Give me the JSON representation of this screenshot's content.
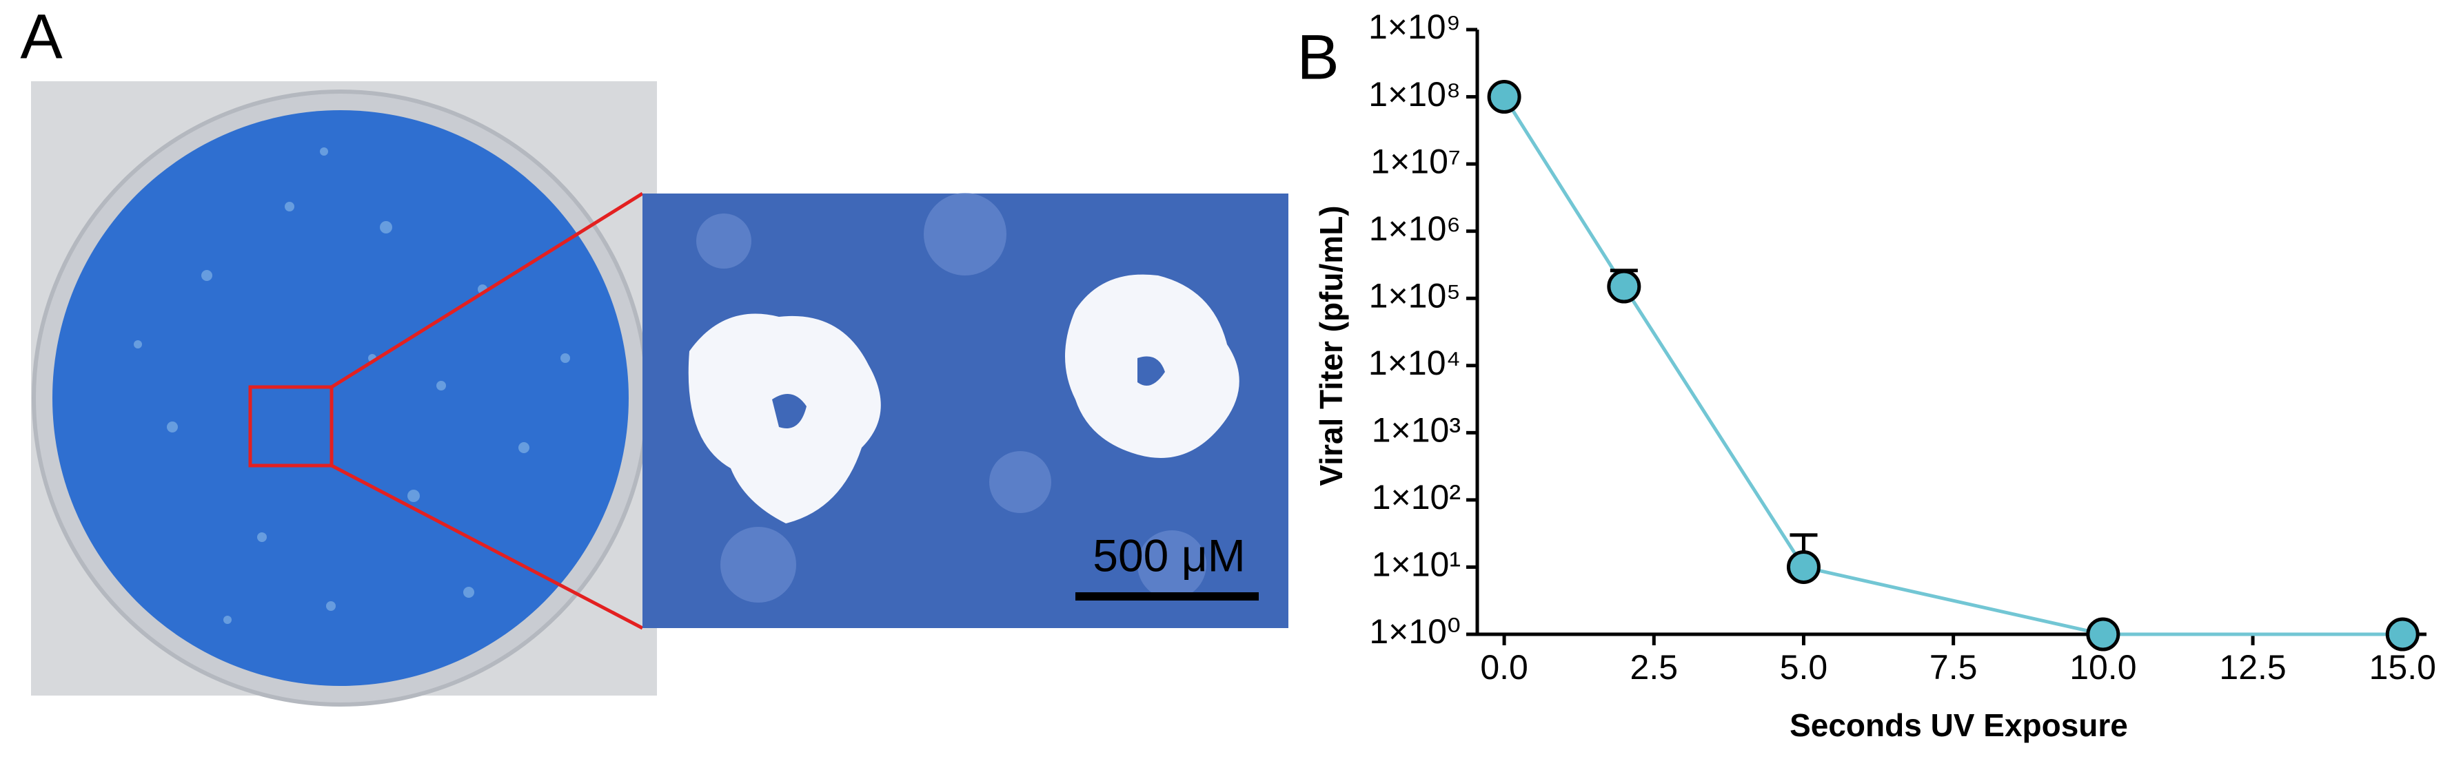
{
  "panel_a": {
    "label": "A",
    "scale_bar": "500 μM"
  },
  "chart_data": {
    "type": "line",
    "panel_label": "B",
    "x_label": "Seconds UV Exposure",
    "y_label": "Viral Titer (pfu/mL)",
    "x": [
      0,
      2,
      5,
      10,
      15
    ],
    "values": [
      100000000,
      150000,
      10,
      1,
      1
    ],
    "errors": [
      null,
      110000,
      20,
      null,
      null
    ],
    "color": "#5bbccc",
    "line_color": "#72c6d4",
    "log_y": true,
    "xlim": [
      -0.45,
      15.4
    ],
    "ylim": [
      1,
      1000000000
    ],
    "xticks": [
      {
        "value": 0,
        "label": "0.0"
      },
      {
        "value": 2.5,
        "label": "2.5"
      },
      {
        "value": 5,
        "label": "5.0"
      },
      {
        "value": 7.5,
        "label": "7.5"
      },
      {
        "value": 10,
        "label": "10.0"
      },
      {
        "value": 12.5,
        "label": "12.5"
      },
      {
        "value": 15,
        "label": "15.0"
      }
    ],
    "yticks": [
      {
        "value": 1,
        "label": "1×10⁰"
      },
      {
        "value": 10,
        "label": "1×10¹"
      },
      {
        "value": 100,
        "label": "1×10²"
      },
      {
        "value": 1000,
        "label": "1×10³"
      },
      {
        "value": 10000,
        "label": "1×10⁴"
      },
      {
        "value": 100000,
        "label": "1×10⁵"
      },
      {
        "value": 1000000,
        "label": "1×10⁶"
      },
      {
        "value": 10000000,
        "label": "1×10⁷"
      },
      {
        "value": 100000000,
        "label": "1×10⁸"
      },
      {
        "value": 1000000000,
        "label": "1×10⁹"
      }
    ]
  }
}
